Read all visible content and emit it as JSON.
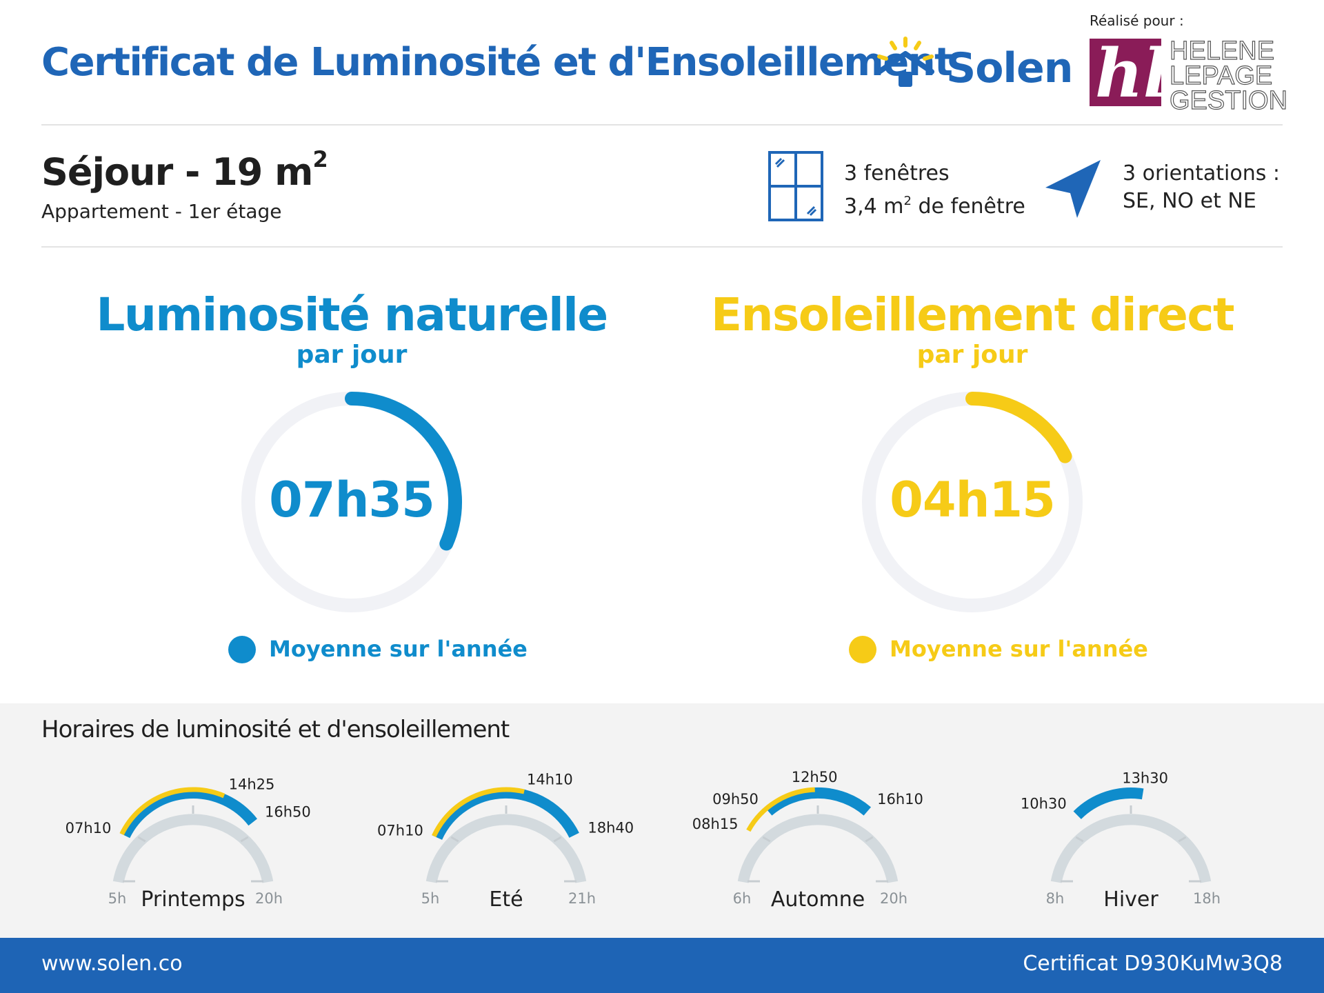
{
  "header": {
    "title": "Certificat de Luminosité et d'Ensoleillement",
    "brand": "Solen",
    "realise_pour": "Réalisé pour :",
    "partner_logo": [
      "HELENE",
      "LEPAGE",
      "GESTION"
    ],
    "colors": {
      "primary": "#1f66b7",
      "partner": "#8a1c58"
    }
  },
  "room": {
    "name": "Séjour - 19 m",
    "name_sup": "2",
    "subtitle": "Appartement - 1er étage",
    "windows_line1": "3 fenêtres",
    "windows_area": "3,4 m",
    "windows_sup": "2",
    "windows_suffix": " de fenêtre",
    "orientations_line1": "3 orientations :",
    "orientations_line2": "SE, NO et NE"
  },
  "luminosite": {
    "title": "Luminosité naturelle",
    "subtitle": "par jour",
    "value": "07h35",
    "fraction": 0.316,
    "legend": "Moyenne sur l'année",
    "color": "#0f8ccc"
  },
  "ensoleillement": {
    "title": "Ensoleillement direct",
    "subtitle": "par jour",
    "value": "04h15",
    "fraction": 0.177,
    "legend": "Moyenne sur l'année",
    "color": "#f6cb17"
  },
  "horaires": {
    "title": "Horaires de luminosité et d'ensoleillement",
    "seasons": [
      {
        "name": "Printemps",
        "start": "5h",
        "end": "20h",
        "lum_start": "07h10",
        "lum_end": "16h50",
        "sun_start": "07h10",
        "sun_end": "14h25"
      },
      {
        "name": "Eté",
        "start": "5h",
        "end": "21h",
        "lum_start": "07h10",
        "lum_end": "18h40",
        "sun_start": "07h10",
        "sun_end": "14h10"
      },
      {
        "name": "Automne",
        "start": "6h",
        "end": "20h",
        "lum_start": "09h50",
        "lum_end": "16h10",
        "sun_start": "08h15",
        "sun_end": "12h50"
      },
      {
        "name": "Hiver",
        "start": "8h",
        "end": "18h",
        "lum_start": "10h30",
        "lum_end": "13h30",
        "sun_start": null,
        "sun_end": null
      }
    ]
  },
  "footer": {
    "website": "www.solen.co",
    "certificate": "Certificat D930KuMw3Q8",
    "color": "#1e64b5"
  }
}
